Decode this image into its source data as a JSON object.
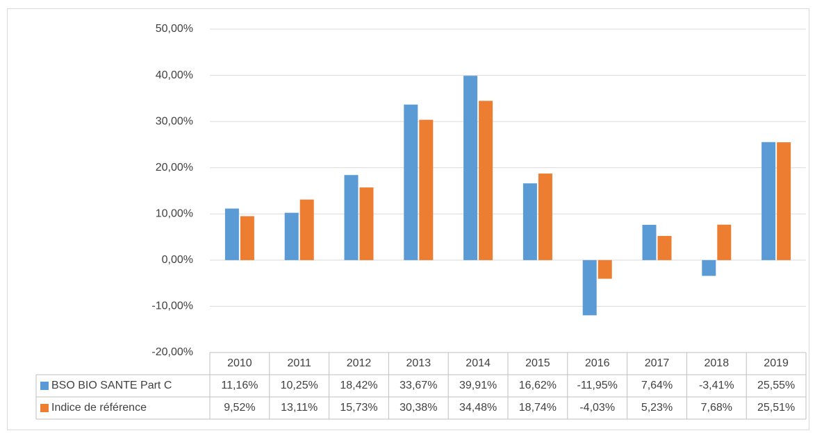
{
  "chart_data": {
    "type": "bar",
    "categories": [
      "2010",
      "2011",
      "2012",
      "2013",
      "2014",
      "2015",
      "2016",
      "2017",
      "2018",
      "2019"
    ],
    "series": [
      {
        "name": "BSO BIO SANTE Part C",
        "color": "#5b9bd5",
        "values": [
          11.16,
          10.25,
          18.42,
          33.67,
          39.91,
          16.62,
          -11.95,
          7.64,
          -3.41,
          25.55
        ],
        "value_labels": [
          "11,16%",
          "10,25%",
          "18,42%",
          "33,67%",
          "39,91%",
          "16,62%",
          "-11,95%",
          "7,64%",
          "-3,41%",
          "25,55%"
        ]
      },
      {
        "name": "Indice de référence",
        "color": "#ed7d31",
        "values": [
          9.52,
          13.11,
          15.73,
          30.38,
          34.48,
          18.74,
          -4.03,
          5.23,
          7.68,
          25.51
        ],
        "value_labels": [
          "9,52%",
          "13,11%",
          "15,73%",
          "30,38%",
          "34,48%",
          "18,74%",
          "-4,03%",
          "5,23%",
          "7,68%",
          "25,51%"
        ]
      }
    ],
    "ylim": [
      -20,
      50
    ],
    "yticks": [
      {
        "value": -20,
        "label": "-20,00%"
      },
      {
        "value": -10,
        "label": "-10,00%"
      },
      {
        "value": 0,
        "label": "0,00%"
      },
      {
        "value": 10,
        "label": "10,00%"
      },
      {
        "value": 20,
        "label": "20,00%"
      },
      {
        "value": 30,
        "label": "30,00%"
      },
      {
        "value": 40,
        "label": "40,00%"
      },
      {
        "value": 50,
        "label": "50,00%"
      }
    ],
    "grid": true
  }
}
